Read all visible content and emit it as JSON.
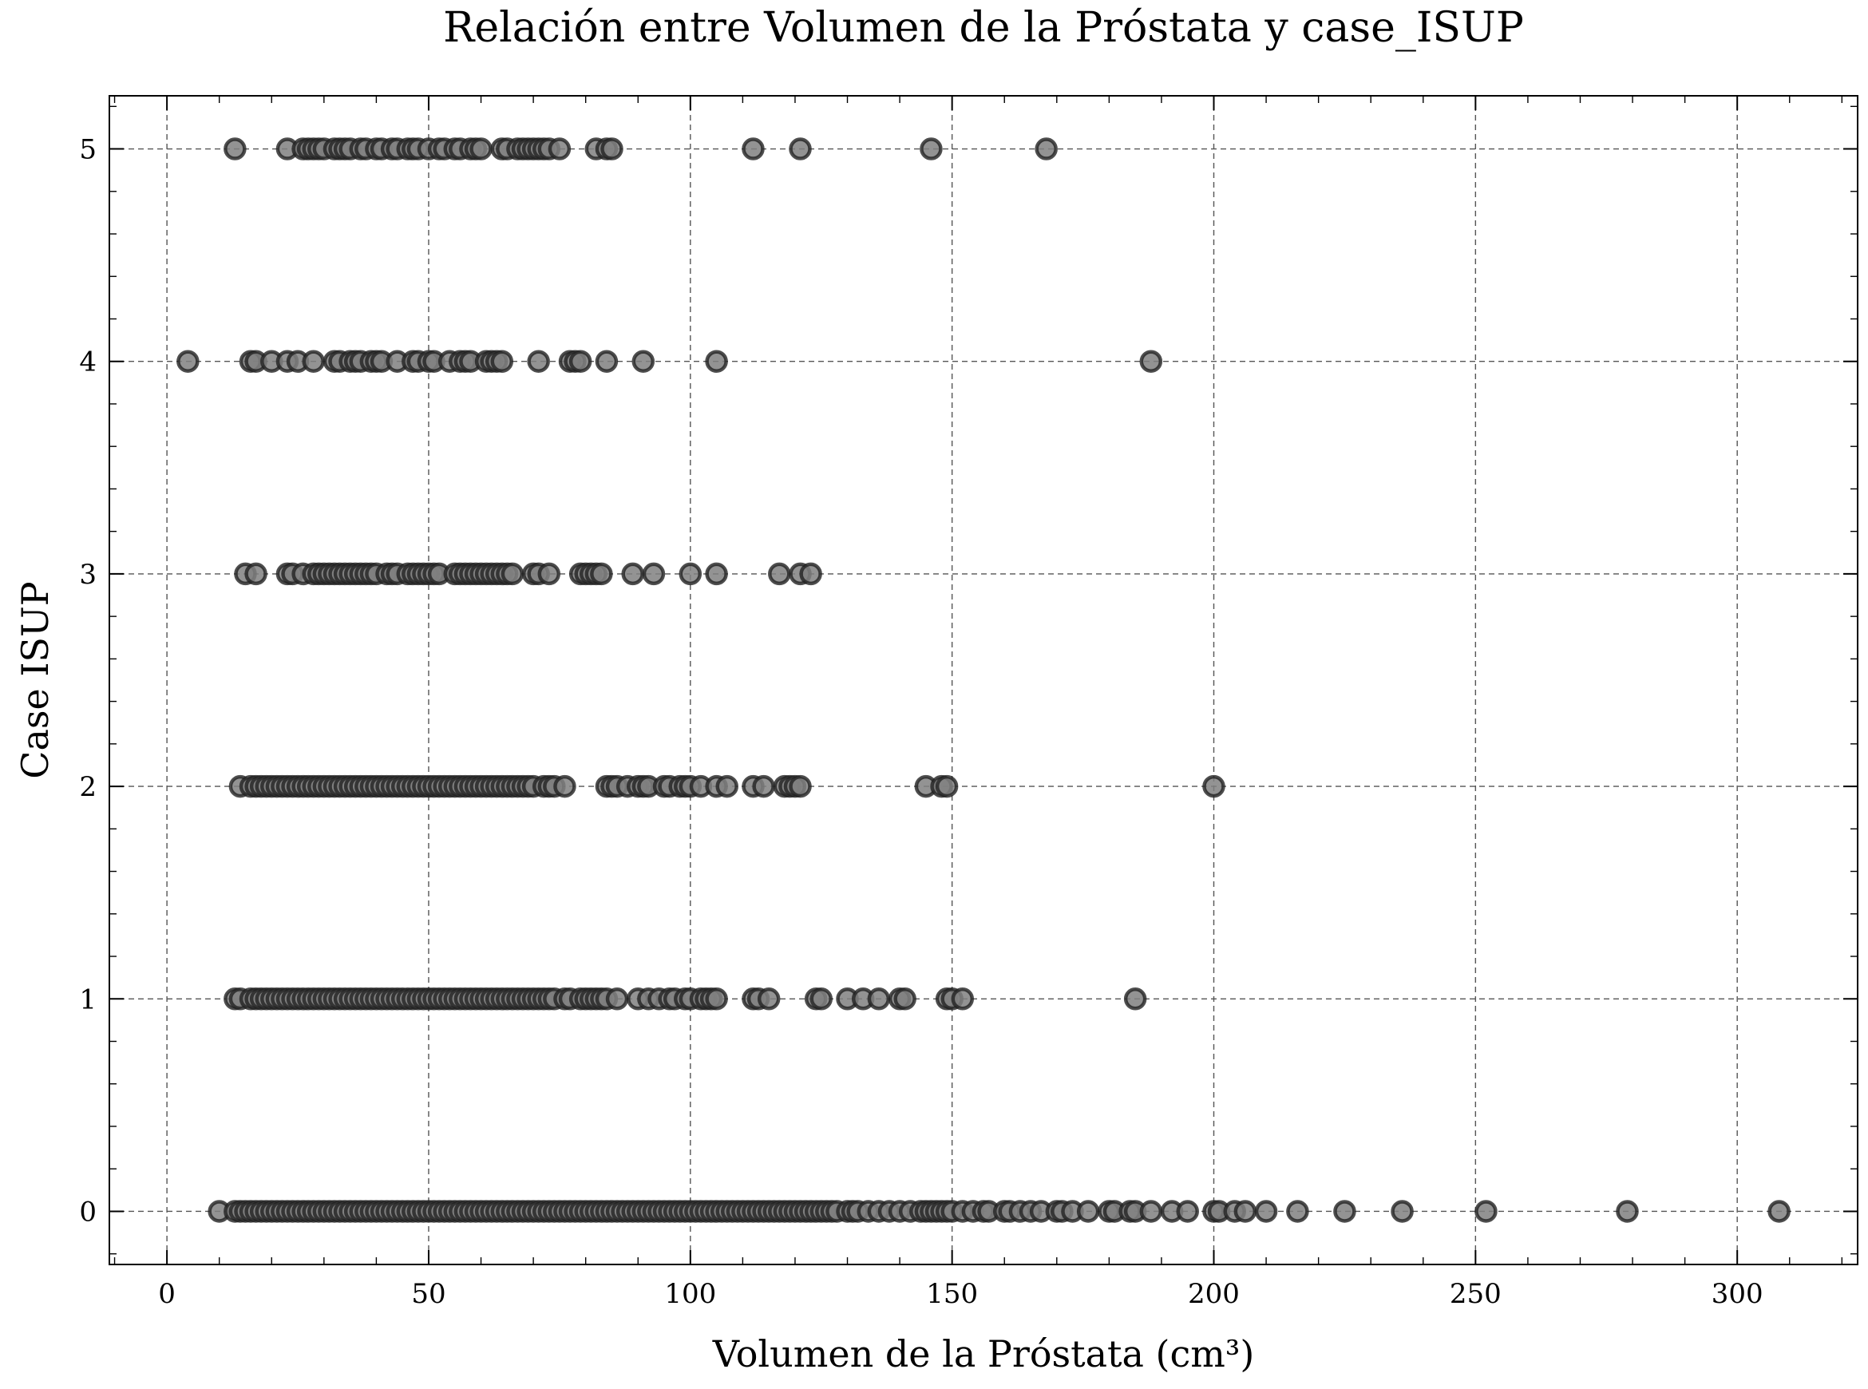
{
  "chart_data": {
    "type": "scatter",
    "title": "Relación entre Volumen de la Próstata y case_ISUP",
    "xlabel": "Volumen de la Próstata (cm³)",
    "ylabel": "Case ISUP",
    "xlim": [
      -11,
      323
    ],
    "ylim": [
      -0.25,
      5.25
    ],
    "xticks": [
      0,
      50,
      100,
      150,
      200,
      250,
      300
    ],
    "yticks": [
      0,
      1,
      2,
      3,
      4,
      5
    ],
    "xtick_labels": [
      "0",
      "50",
      "100",
      "150",
      "200",
      "250",
      "300"
    ],
    "ytick_labels": [
      "0",
      "1",
      "2",
      "3",
      "4",
      "5"
    ],
    "grid": true,
    "marker_color": "#808080",
    "marker_edge_color": "#222222",
    "series": [
      {
        "y": 5,
        "x": [
          13,
          23,
          26,
          27,
          28,
          29,
          30,
          32,
          33,
          34,
          35,
          37,
          38,
          40,
          41,
          43,
          44,
          46,
          47,
          48,
          50,
          52,
          53,
          55,
          56,
          58,
          59,
          60,
          64,
          65,
          67,
          68,
          69,
          70,
          71,
          72,
          73,
          75,
          82,
          84,
          85,
          112,
          121,
          146,
          168
        ]
      },
      {
        "y": 4,
        "x": [
          4,
          16,
          17,
          20,
          23,
          25,
          28,
          32,
          33,
          35,
          36,
          37,
          39,
          40,
          41,
          44,
          47,
          48,
          50,
          51,
          54,
          56,
          57,
          58,
          61,
          62,
          63,
          64,
          71,
          77,
          78,
          79,
          84,
          91,
          105,
          188
        ]
      },
      {
        "y": 3,
        "x": [
          15,
          17,
          23,
          24,
          26,
          28,
          29,
          30,
          31,
          32,
          33,
          34,
          35,
          36,
          37,
          38,
          39,
          40,
          42,
          43,
          44,
          46,
          47,
          48,
          49,
          50,
          51,
          52,
          55,
          56,
          57,
          58,
          59,
          60,
          61,
          62,
          63,
          64,
          65,
          66,
          70,
          71,
          73,
          79,
          80,
          81,
          82,
          83,
          89,
          93,
          100,
          105,
          117,
          121,
          123
        ]
      },
      {
        "y": 2,
        "x": [
          14,
          16,
          17,
          18,
          19,
          20,
          21,
          22,
          23,
          24,
          25,
          26,
          27,
          28,
          29,
          30,
          31,
          32,
          33,
          34,
          35,
          36,
          37,
          38,
          39,
          40,
          41,
          42,
          43,
          44,
          45,
          46,
          47,
          48,
          49,
          50,
          51,
          52,
          53,
          54,
          55,
          56,
          57,
          58,
          59,
          60,
          61,
          62,
          63,
          64,
          65,
          66,
          67,
          68,
          69,
          70,
          72,
          73,
          74,
          76,
          84,
          85,
          86,
          88,
          90,
          91,
          92,
          95,
          96,
          98,
          99,
          100,
          102,
          105,
          107,
          112,
          114,
          118,
          119,
          120,
          121,
          145,
          148,
          149,
          200
        ]
      },
      {
        "y": 1,
        "x": [
          13,
          14,
          16,
          17,
          18,
          19,
          20,
          21,
          22,
          23,
          24,
          25,
          26,
          27,
          28,
          29,
          30,
          31,
          32,
          33,
          34,
          35,
          36,
          37,
          38,
          39,
          40,
          41,
          42,
          43,
          44,
          45,
          46,
          47,
          48,
          49,
          50,
          51,
          52,
          53,
          54,
          55,
          56,
          57,
          58,
          59,
          60,
          61,
          62,
          63,
          64,
          65,
          66,
          67,
          68,
          69,
          70,
          71,
          72,
          73,
          74,
          76,
          77,
          79,
          80,
          81,
          82,
          83,
          84,
          86,
          90,
          92,
          94,
          96,
          97,
          99,
          100,
          102,
          103,
          104,
          105,
          112,
          113,
          115,
          124,
          125,
          130,
          133,
          136,
          140,
          141,
          149,
          150,
          152,
          185
        ]
      },
      {
        "y": 0,
        "x": [
          10,
          13,
          14,
          15,
          16,
          17,
          18,
          19,
          20,
          21,
          22,
          23,
          24,
          25,
          26,
          27,
          28,
          29,
          30,
          31,
          32,
          33,
          34,
          35,
          36,
          37,
          38,
          39,
          40,
          41,
          42,
          43,
          44,
          45,
          46,
          47,
          48,
          49,
          50,
          51,
          52,
          53,
          54,
          55,
          56,
          57,
          58,
          59,
          60,
          61,
          62,
          63,
          64,
          65,
          66,
          67,
          68,
          69,
          70,
          71,
          72,
          73,
          74,
          75,
          76,
          77,
          78,
          79,
          80,
          81,
          82,
          83,
          84,
          85,
          86,
          87,
          88,
          89,
          90,
          91,
          92,
          93,
          94,
          95,
          96,
          97,
          98,
          99,
          100,
          101,
          102,
          103,
          104,
          105,
          106,
          107,
          108,
          109,
          110,
          111,
          112,
          113,
          114,
          115,
          116,
          117,
          118,
          119,
          120,
          121,
          122,
          123,
          124,
          125,
          126,
          127,
          128,
          130,
          131,
          132,
          134,
          136,
          138,
          140,
          142,
          144,
          145,
          146,
          147,
          148,
          149,
          150,
          152,
          154,
          156,
          157,
          160,
          161,
          163,
          165,
          167,
          170,
          171,
          173,
          176,
          180,
          181,
          184,
          185,
          188,
          192,
          195,
          200,
          201,
          204,
          206,
          210,
          216,
          225,
          236,
          252,
          279,
          308
        ]
      }
    ]
  }
}
